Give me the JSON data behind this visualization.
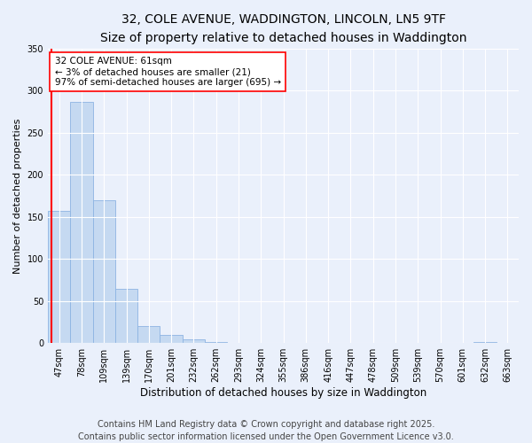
{
  "title_line1": "32, COLE AVENUE, WADDINGTON, LINCOLN, LN5 9TF",
  "title_line2": "Size of property relative to detached houses in Waddington",
  "xlabel": "Distribution of detached houses by size in Waddington",
  "ylabel": "Number of detached properties",
  "bins": [
    "47sqm",
    "78sqm",
    "109sqm",
    "139sqm",
    "170sqm",
    "201sqm",
    "232sqm",
    "262sqm",
    "293sqm",
    "324sqm",
    "355sqm",
    "386sqm",
    "416sqm",
    "447sqm",
    "478sqm",
    "509sqm",
    "539sqm",
    "570sqm",
    "601sqm",
    "632sqm",
    "663sqm"
  ],
  "values": [
    157,
    287,
    170,
    64,
    20,
    10,
    4,
    1,
    0,
    0,
    0,
    0,
    0,
    0,
    0,
    0,
    0,
    0,
    0,
    1,
    0
  ],
  "bar_color": "#c5d9f1",
  "bar_edge_color": "#8db4e2",
  "highlight_color": "#ff0000",
  "annotation_text": "32 COLE AVENUE: 61sqm\n← 3% of detached houses are smaller (21)\n97% of semi-detached houses are larger (695) →",
  "annotation_box_color": "#ffffff",
  "annotation_box_edge": "#ff0000",
  "ylim": [
    0,
    350
  ],
  "yticks": [
    0,
    50,
    100,
    150,
    200,
    250,
    300,
    350
  ],
  "footer_line1": "Contains HM Land Registry data © Crown copyright and database right 2025.",
  "footer_line2": "Contains public sector information licensed under the Open Government Licence v3.0.",
  "background_color": "#eaf0fb",
  "plot_bg_color": "#eaf0fb",
  "grid_color": "#ffffff",
  "title_fontsize": 10,
  "subtitle_fontsize": 9,
  "tick_fontsize": 7,
  "ylabel_fontsize": 8,
  "xlabel_fontsize": 8.5,
  "annotation_fontsize": 7.5,
  "footer_fontsize": 7
}
